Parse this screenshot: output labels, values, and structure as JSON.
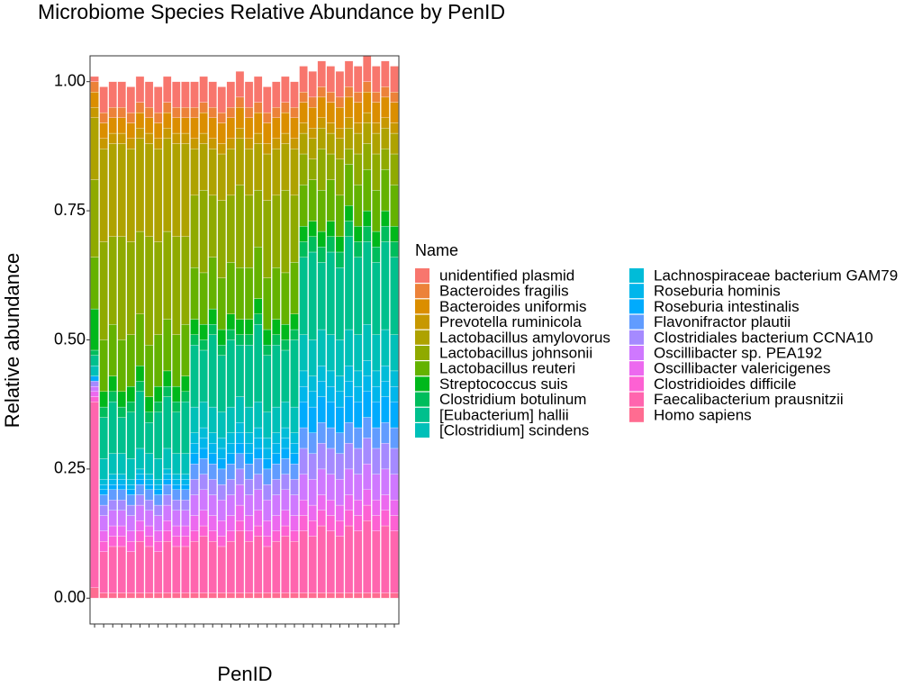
{
  "chart_data": {
    "type": "stacked_bar",
    "title": "Microbiome Species Relative Abundance by PenID",
    "x_label": "PenID",
    "y_label": "Relative abundance",
    "legend_title": "Name",
    "categories": [
      null,
      null,
      null,
      null,
      null,
      null,
      null,
      null,
      null,
      null,
      null,
      null,
      null,
      null,
      null,
      null,
      null,
      null,
      null,
      null,
      null,
      null,
      null,
      null,
      null,
      null,
      null,
      null,
      null,
      null,
      null,
      null,
      null,
      null
    ],
    "ylim": [
      -0.05,
      1.05
    ],
    "yticks": [
      {
        "value": 0,
        "label": "0.00"
      },
      {
        "value": 0.25,
        "label": "0.25"
      },
      {
        "value": 0.5,
        "label": "0.50"
      },
      {
        "value": 0.75,
        "label": "0.75"
      },
      {
        "value": 1,
        "label": "1.00"
      }
    ],
    "grid": false,
    "legend": "right",
    "series": [
      {
        "name": "unidentified plasmid",
        "color": "#F8766D",
        "values": [
          0.01,
          0.05,
          0.05,
          0.05,
          0.05,
          0.05,
          0.05,
          0.05,
          0.05,
          0.05,
          0.05,
          0.05,
          0.05,
          0.05,
          0.05,
          0.05,
          0.05,
          0.05,
          0.05,
          0.05,
          0.05,
          0.05,
          0.05,
          0.05,
          0.05,
          0.05,
          0.05,
          0.05,
          0.05,
          0.05,
          0.05,
          0.05,
          0.05,
          0.05
        ]
      },
      {
        "name": "Bacteroides fragilis",
        "color": "#EC8239",
        "values": [
          0.02,
          0.02,
          0.02,
          0.02,
          0.02,
          0.02,
          0.02,
          0.02,
          0.02,
          0.02,
          0.02,
          0.02,
          0.02,
          0.02,
          0.02,
          0.02,
          0.02,
          0.02,
          0.02,
          0.02,
          0.02,
          0.02,
          0.02,
          0.02,
          0.02,
          0.02,
          0.02,
          0.02,
          0.02,
          0.02,
          0.02,
          0.02,
          0.02,
          0.02
        ]
      },
      {
        "name": "Bacteroides uniformis",
        "color": "#DB8E00",
        "values": [
          0.03,
          0.03,
          0.03,
          0.03,
          0.03,
          0.03,
          0.03,
          0.03,
          0.03,
          0.03,
          0.03,
          0.04,
          0.04,
          0.04,
          0.04,
          0.04,
          0.04,
          0.04,
          0.04,
          0.04,
          0.04,
          0.04,
          0.04,
          0.04,
          0.04,
          0.04,
          0.04,
          0.04,
          0.04,
          0.04,
          0.04,
          0.04,
          0.04,
          0.04
        ]
      },
      {
        "name": "Prevotella ruminicola",
        "color": "#C79800",
        "values": [
          0.02,
          0.02,
          0.02,
          0.02,
          0.02,
          0.02,
          0.02,
          0.02,
          0.02,
          0.02,
          0.02,
          0.02,
          0.02,
          0.02,
          0.02,
          0.02,
          0.02,
          0.02,
          0.02,
          0.02,
          0.02,
          0.02,
          0.02,
          0.02,
          0.02,
          0.02,
          0.02,
          0.02,
          0.02,
          0.02,
          0.02,
          0.02,
          0.02,
          0.02
        ]
      },
      {
        "name": "Lactobacillus amylovorus",
        "color": "#AEA200",
        "values": [
          0.12,
          0.18,
          0.18,
          0.18,
          0.18,
          0.18,
          0.18,
          0.18,
          0.18,
          0.18,
          0.18,
          0.09,
          0.09,
          0.09,
          0.09,
          0.09,
          0.09,
          0.09,
          0.09,
          0.09,
          0.09,
          0.09,
          0.09,
          0.04,
          0.04,
          0.04,
          0.04,
          0.04,
          0.04,
          0.04,
          0.04,
          0.04,
          0.04,
          0.04
        ]
      },
      {
        "name": "Lactobacillus johnsonii",
        "color": "#8FAA00",
        "values": [
          0.15,
          0.19,
          0.17,
          0.2,
          0.18,
          0.16,
          0.21,
          0.18,
          0.17,
          0.19,
          0.17,
          0.14,
          0.16,
          0.12,
          0.15,
          0.13,
          0.16,
          0.14,
          0.11,
          0.15,
          0.14,
          0.16,
          0.13,
          0.06,
          0.04,
          0.08,
          0.05,
          0.07,
          0.03,
          0.06,
          0.05,
          0.07,
          0.04,
          0.06
        ]
      },
      {
        "name": "Lactobacillus reuteri",
        "color": "#64B200",
        "values": [
          0.1,
          0.1,
          0.1,
          0.1,
          0.1,
          0.1,
          0.1,
          0.1,
          0.1,
          0.1,
          0.1,
          0.1,
          0.1,
          0.1,
          0.1,
          0.1,
          0.1,
          0.1,
          0.1,
          0.1,
          0.1,
          0.1,
          0.1,
          0.08,
          0.08,
          0.08,
          0.08,
          0.08,
          0.08,
          0.08,
          0.08,
          0.08,
          0.08,
          0.08
        ]
      },
      {
        "name": "Streptococcus suis",
        "color": "#00B81B",
        "values": [
          0.08,
          0.03,
          0.03,
          0.03,
          0.03,
          0.03,
          0.03,
          0.03,
          0.03,
          0.03,
          0.03,
          0.03,
          0.03,
          0.03,
          0.03,
          0.03,
          0.03,
          0.03,
          0.03,
          0.03,
          0.03,
          0.03,
          0.03,
          0.03,
          0.03,
          0.03,
          0.03,
          0.03,
          0.03,
          0.03,
          0.03,
          0.03,
          0.03,
          0.03
        ]
      },
      {
        "name": "Clostridium botulinum",
        "color": "#00BD5C",
        "values": [
          0.01,
          0.02,
          0.02,
          0.02,
          0.02,
          0.02,
          0.02,
          0.02,
          0.02,
          0.02,
          0.02,
          0.02,
          0.02,
          0.02,
          0.02,
          0.02,
          0.02,
          0.02,
          0.02,
          0.02,
          0.02,
          0.02,
          0.02,
          0.03,
          0.03,
          0.03,
          0.03,
          0.03,
          0.03,
          0.03,
          0.03,
          0.03,
          0.03,
          0.03
        ]
      },
      {
        "name": "[Eubacterium] hallii",
        "color": "#00C08D",
        "values": [
          0.02,
          0.08,
          0.1,
          0.07,
          0.09,
          0.11,
          0.06,
          0.09,
          0.1,
          0.08,
          0.1,
          0.12,
          0.1,
          0.14,
          0.11,
          0.13,
          0.1,
          0.12,
          0.15,
          0.11,
          0.12,
          0.1,
          0.13,
          0.15,
          0.17,
          0.13,
          0.16,
          0.14,
          0.18,
          0.15,
          0.16,
          0.14,
          0.17,
          0.15
        ]
      },
      {
        "name": "[Clostridium] scindens",
        "color": "#00C0B8",
        "values": [
          0.02,
          0.04,
          0.04,
          0.04,
          0.04,
          0.04,
          0.04,
          0.04,
          0.04,
          0.04,
          0.04,
          0.05,
          0.05,
          0.05,
          0.05,
          0.05,
          0.05,
          0.05,
          0.05,
          0.05,
          0.05,
          0.05,
          0.05,
          0.07,
          0.07,
          0.07,
          0.07,
          0.07,
          0.07,
          0.07,
          0.07,
          0.07,
          0.07,
          0.07
        ]
      },
      {
        "name": "Lachnospiraceae bacterium GAM79",
        "color": "#00BCD8",
        "values": [
          0,
          0.01,
          0.01,
          0.01,
          0.01,
          0.01,
          0.01,
          0.01,
          0.01,
          0.01,
          0.01,
          0.02,
          0.02,
          0.02,
          0.02,
          0.02,
          0.02,
          0.02,
          0.02,
          0.02,
          0.02,
          0.02,
          0.02,
          0.03,
          0.03,
          0.03,
          0.03,
          0.03,
          0.03,
          0.03,
          0.03,
          0.03,
          0.03,
          0.03
        ]
      },
      {
        "name": "Roseburia hominis",
        "color": "#00B6EB",
        "values": [
          0,
          0.01,
          0.01,
          0.01,
          0.01,
          0.01,
          0.01,
          0.01,
          0.01,
          0.01,
          0.01,
          0.02,
          0.02,
          0.02,
          0.02,
          0.02,
          0.02,
          0.02,
          0.02,
          0.02,
          0.02,
          0.02,
          0.02,
          0.03,
          0.03,
          0.03,
          0.03,
          0.03,
          0.03,
          0.03,
          0.03,
          0.03,
          0.03,
          0.03
        ]
      },
      {
        "name": "Roseburia intestinalis",
        "color": "#00ABFD",
        "values": [
          0.01,
          0.01,
          0.01,
          0.01,
          0.01,
          0.01,
          0.01,
          0.01,
          0.01,
          0.01,
          0.01,
          0.02,
          0.02,
          0.02,
          0.02,
          0.02,
          0.02,
          0.02,
          0.02,
          0.02,
          0.02,
          0.02,
          0.02,
          0.05,
          0.05,
          0.05,
          0.05,
          0.05,
          0.05,
          0.05,
          0.05,
          0.05,
          0.05,
          0.05
        ]
      },
      {
        "name": "Flavonifractor plautii",
        "color": "#619CFF",
        "values": [
          0,
          0.02,
          0.02,
          0.02,
          0.02,
          0.02,
          0.02,
          0.02,
          0.02,
          0.02,
          0.02,
          0.03,
          0.03,
          0.03,
          0.03,
          0.03,
          0.03,
          0.03,
          0.03,
          0.03,
          0.03,
          0.03,
          0.03,
          0.04,
          0.04,
          0.04,
          0.04,
          0.04,
          0.04,
          0.04,
          0.04,
          0.04,
          0.04,
          0.04
        ]
      },
      {
        "name": "Clostridiales bacterium CCNA10",
        "color": "#A58AFF",
        "values": [
          0.01,
          0.02,
          0.02,
          0.02,
          0.02,
          0.02,
          0.02,
          0.02,
          0.02,
          0.02,
          0.02,
          0.03,
          0.03,
          0.03,
          0.03,
          0.03,
          0.03,
          0.03,
          0.03,
          0.03,
          0.03,
          0.03,
          0.03,
          0.05,
          0.05,
          0.05,
          0.05,
          0.05,
          0.05,
          0.05,
          0.05,
          0.05,
          0.05,
          0.05
        ]
      },
      {
        "name": "Oscillibacter sp. PEA192",
        "color": "#CF78FF",
        "values": [
          0.01,
          0.03,
          0.03,
          0.03,
          0.03,
          0.03,
          0.03,
          0.03,
          0.03,
          0.03,
          0.03,
          0.04,
          0.04,
          0.04,
          0.04,
          0.04,
          0.04,
          0.04,
          0.04,
          0.04,
          0.04,
          0.04,
          0.04,
          0.05,
          0.05,
          0.05,
          0.05,
          0.05,
          0.05,
          0.05,
          0.05,
          0.05,
          0.05,
          0.05
        ]
      },
      {
        "name": "Oscillibacter valericigenes",
        "color": "#EC69EF",
        "values": [
          0.01,
          0.02,
          0.02,
          0.02,
          0.02,
          0.02,
          0.02,
          0.02,
          0.02,
          0.02,
          0.02,
          0.03,
          0.03,
          0.03,
          0.03,
          0.03,
          0.03,
          0.03,
          0.03,
          0.03,
          0.03,
          0.03,
          0.03,
          0.03,
          0.03,
          0.03,
          0.03,
          0.03,
          0.03,
          0.03,
          0.03,
          0.03,
          0.03,
          0.03
        ]
      },
      {
        "name": "Clostridioides difficile",
        "color": "#FD61D3",
        "values": [
          0.01,
          0.02,
          0.02,
          0.02,
          0.02,
          0.02,
          0.02,
          0.02,
          0.02,
          0.02,
          0.02,
          0.02,
          0.02,
          0.02,
          0.02,
          0.02,
          0.02,
          0.02,
          0.02,
          0.02,
          0.02,
          0.02,
          0.02,
          0.03,
          0.03,
          0.03,
          0.03,
          0.03,
          0.03,
          0.03,
          0.03,
          0.03,
          0.03,
          0.03
        ]
      },
      {
        "name": "Faecalibacterium prausnitzii",
        "color": "#FF65AE",
        "values": [
          0.36,
          0.08,
          0.09,
          0.09,
          0.08,
          0.1,
          0.09,
          0.08,
          0.1,
          0.09,
          0.09,
          0.1,
          0.11,
          0.1,
          0.09,
          0.1,
          0.12,
          0.1,
          0.11,
          0.09,
          0.1,
          0.11,
          0.1,
          0.12,
          0.11,
          0.13,
          0.12,
          0.11,
          0.13,
          0.12,
          0.14,
          0.12,
          0.13,
          0.12
        ]
      },
      {
        "name": "Homo sapiens",
        "color": "#FF6C91",
        "values": [
          0.02,
          0.01,
          0.01,
          0.01,
          0.01,
          0.01,
          0.01,
          0.01,
          0.01,
          0.01,
          0.01,
          0.01,
          0.01,
          0.01,
          0.01,
          0.01,
          0.01,
          0.01,
          0.01,
          0.01,
          0.01,
          0.01,
          0.01,
          0.01,
          0.01,
          0.01,
          0.01,
          0.01,
          0.01,
          0.01,
          0.01,
          0.01,
          0.01,
          0.01
        ]
      }
    ]
  }
}
